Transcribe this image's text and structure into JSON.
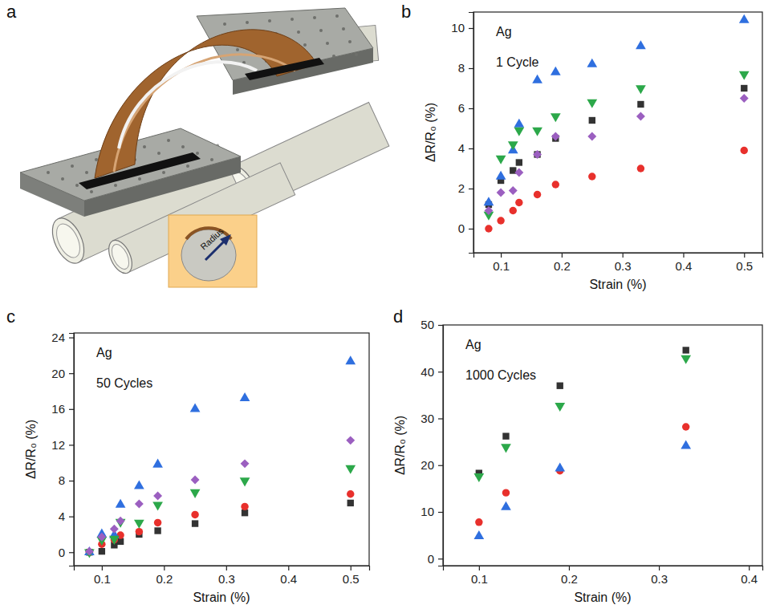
{
  "panel_a": {
    "panel_label": "a",
    "inset_label": "Radius"
  },
  "chart_data": [
    {
      "type": "scatter",
      "panel_label": "b",
      "annotations": [
        "Ag",
        "1 Cycle"
      ],
      "x_label": "Strain (%)",
      "y_label": "ΔR/R₀ (%)",
      "x": [
        0.08,
        0.1,
        0.12,
        0.13,
        0.16,
        0.19,
        0.25,
        0.33,
        0.5
      ],
      "xlim": [
        0.055,
        0.53
      ],
      "xticks": [
        0.1,
        0.2,
        0.3,
        0.4,
        0.5
      ],
      "ylim": [
        -1.2,
        10.8
      ],
      "yticks": [
        0,
        2,
        4,
        6,
        8,
        10
      ],
      "series": [
        {
          "color": "#333333",
          "marker": "square",
          "values": [
            1.2,
            2.4,
            2.9,
            3.3,
            3.7,
            4.5,
            5.4,
            6.2,
            7.0
          ]
        },
        {
          "color": "#e8302c",
          "marker": "circle",
          "values": [
            0.0,
            0.4,
            0.9,
            1.3,
            1.7,
            2.2,
            2.6,
            3.0,
            3.9
          ]
        },
        {
          "color": "#2f6fdf",
          "marker": "triangle-up",
          "values": [
            1.3,
            2.6,
            3.9,
            5.2,
            7.4,
            7.8,
            8.2,
            9.1,
            10.4
          ]
        },
        {
          "color": "#2ca84a",
          "marker": "triangle-down",
          "values": [
            0.7,
            3.5,
            4.2,
            4.9,
            4.9,
            5.6,
            6.3,
            7.0,
            7.7
          ]
        },
        {
          "color": "#9b5fc0",
          "marker": "diamond",
          "values": [
            0.9,
            1.8,
            1.9,
            2.8,
            3.7,
            4.6,
            4.6,
            5.6,
            6.5
          ]
        }
      ]
    },
    {
      "type": "scatter",
      "panel_label": "c",
      "annotations": [
        "Ag",
        "50 Cycles"
      ],
      "x_label": "Strain (%)",
      "y_label": "ΔR/R₀ (%)",
      "x": [
        0.08,
        0.1,
        0.12,
        0.13,
        0.16,
        0.19,
        0.25,
        0.33,
        0.5
      ],
      "xlim": [
        0.055,
        0.53
      ],
      "xticks": [
        0.1,
        0.2,
        0.3,
        0.4,
        0.5
      ],
      "ylim": [
        -1.5,
        24.5
      ],
      "yticks": [
        0,
        4,
        8,
        12,
        16,
        20,
        24
      ],
      "series": [
        {
          "color": "#333333",
          "marker": "square",
          "values": [
            0.0,
            0.1,
            0.8,
            1.2,
            2.0,
            2.4,
            3.2,
            4.4,
            5.5
          ]
        },
        {
          "color": "#e8302c",
          "marker": "circle",
          "values": [
            0.0,
            0.9,
            1.4,
            1.9,
            2.3,
            3.3,
            4.2,
            5.1,
            6.5
          ]
        },
        {
          "color": "#2f6fdf",
          "marker": "triangle-up",
          "values": [
            0.0,
            2.0,
            1.9,
            5.3,
            7.4,
            9.8,
            16.0,
            17.2,
            21.3
          ]
        },
        {
          "color": "#2ca84a",
          "marker": "triangle-down",
          "values": [
            0.0,
            1.4,
            1.5,
            3.4,
            3.3,
            5.3,
            6.7,
            8.0,
            9.4
          ]
        },
        {
          "color": "#9b5fc0",
          "marker": "diamond",
          "values": [
            0.1,
            1.7,
            2.6,
            3.5,
            5.4,
            6.3,
            8.1,
            9.9,
            12.5
          ]
        }
      ]
    },
    {
      "type": "scatter",
      "panel_label": "d",
      "annotations": [
        "Ag",
        "1000 Cycles"
      ],
      "x_label": "Strain (%)",
      "y_label": "ΔR/R₀ (%)",
      "x": [
        0.1,
        0.13,
        0.19,
        0.33
      ],
      "xlim": [
        0.06,
        0.415
      ],
      "xticks": [
        0.1,
        0.2,
        0.3,
        0.4
      ],
      "ylim": [
        -1.5,
        50
      ],
      "yticks": [
        0,
        10,
        20,
        30,
        40,
        50
      ],
      "series": [
        {
          "color": "#333333",
          "marker": "square",
          "values": [
            18.3,
            26.2,
            37.0,
            44.6
          ]
        },
        {
          "color": "#e8302c",
          "marker": "circle",
          "values": [
            7.8,
            14.1,
            18.8,
            28.2
          ]
        },
        {
          "color": "#2f6fdf",
          "marker": "triangle-up",
          "values": [
            4.8,
            11.0,
            19.3,
            24.1
          ]
        },
        {
          "color": "#2ca84a",
          "marker": "triangle-down",
          "values": [
            17.6,
            23.9,
            32.7,
            42.9
          ]
        }
      ]
    }
  ]
}
